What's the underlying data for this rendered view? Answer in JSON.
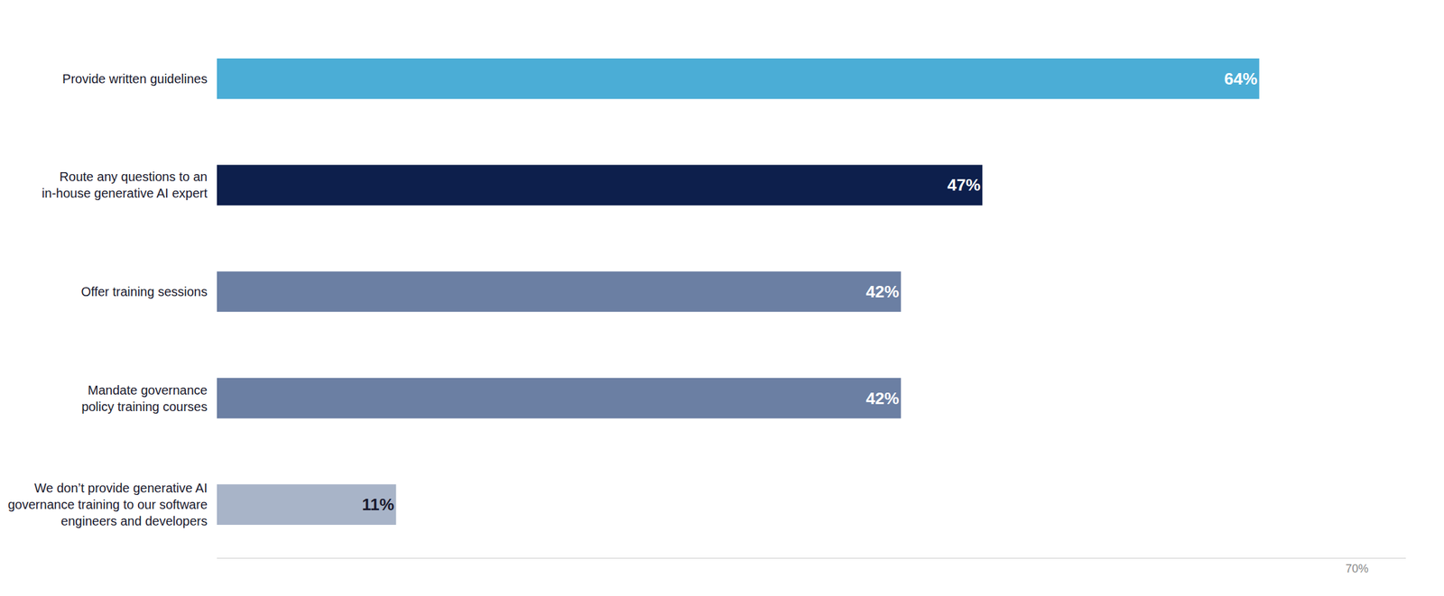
{
  "chart_data": {
    "type": "bar",
    "orientation": "horizontal",
    "categories": [
      "We don’t provide generative AI\ngovernance training to our software\nengineers and developers",
      "Mandate governance\npolicy training courses",
      "Offer training sessions",
      "Route any questions to an\nin-house generative AI expert",
      "Provide written guidelines"
    ],
    "values": [
      11,
      42,
      42,
      47,
      64
    ],
    "value_labels": [
      "11%",
      "42%",
      "42%",
      "47%",
      "64%"
    ],
    "colors": [
      "#a8b4c8",
      "#6b7fa3",
      "#6b7fa3",
      "#0d1f4c",
      "#4badd6"
    ],
    "xlim": [
      0,
      73
    ],
    "xticks": [
      {
        "value": 70,
        "label": "70%"
      }
    ],
    "grid": false,
    "data_labels": true
  }
}
